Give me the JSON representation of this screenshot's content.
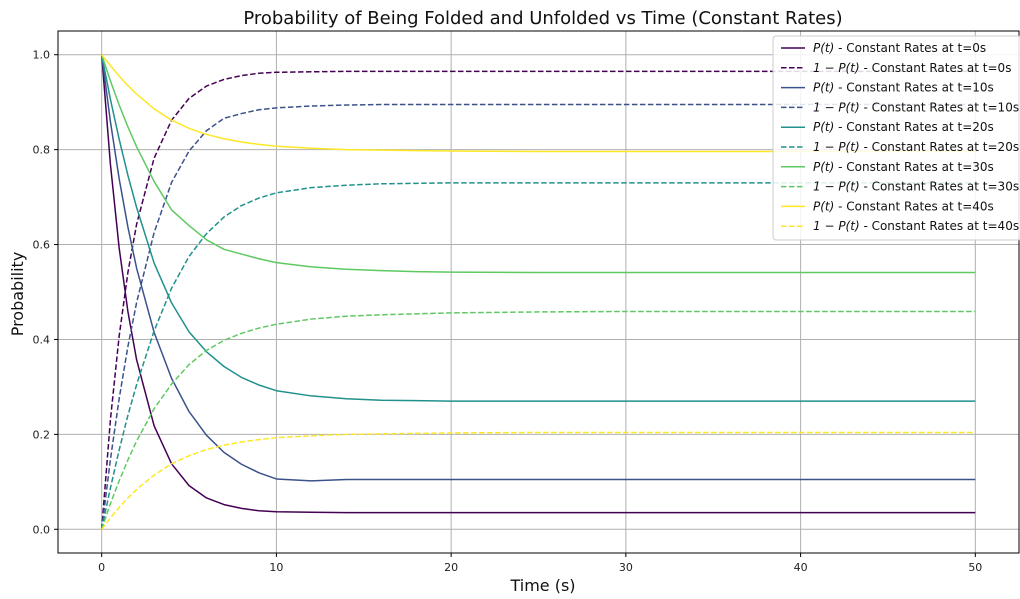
{
  "chart_data": {
    "type": "line",
    "title": "Probability of Being Folded and Unfolded vs Time (Constant Rates)",
    "xlabel": "Time (s)",
    "ylabel": "Probability",
    "xlim": [
      -2.5,
      52.5
    ],
    "ylim": [
      -0.05,
      1.05
    ],
    "xticks": [
      0,
      10,
      20,
      30,
      40,
      50
    ],
    "yticks": [
      0.0,
      0.2,
      0.4,
      0.6,
      0.8,
      1.0
    ],
    "xtick_labels": [
      "0",
      "10",
      "20",
      "30",
      "40",
      "50"
    ],
    "ytick_labels": [
      "0.0",
      "0.2",
      "0.4",
      "0.6",
      "0.8",
      "1.0"
    ],
    "grid": true,
    "legend_position": "top-right",
    "x": [
      0,
      0.5,
      1,
      1.5,
      2,
      3,
      4,
      5,
      6,
      7,
      8,
      9,
      10,
      12,
      14,
      16,
      18,
      20,
      25,
      30,
      35,
      40,
      45,
      50
    ],
    "series": [
      {
        "name": "P(t) - Constant Rates at t=0s",
        "legend_prefix": "P(t)",
        "legend_suffix": " - Constant Rates at t=0s",
        "color": "#440154",
        "dash": "solid",
        "values": [
          1.0,
          0.769,
          0.593,
          0.459,
          0.357,
          0.218,
          0.138,
          0.092,
          0.066,
          0.052,
          0.044,
          0.039,
          0.037,
          0.036,
          0.035,
          0.035,
          0.035,
          0.035,
          0.035,
          0.035,
          0.035,
          0.035,
          0.035,
          0.035
        ]
      },
      {
        "name": "1 - P(t) - Constant Rates at t=0s",
        "legend_prefix": "1 − P(t)",
        "legend_suffix": " - Constant Rates at t=0s",
        "color": "#440154",
        "dash": "dashed",
        "values": [
          0.0,
          0.231,
          0.407,
          0.541,
          0.643,
          0.782,
          0.862,
          0.908,
          0.934,
          0.948,
          0.956,
          0.961,
          0.963,
          0.964,
          0.965,
          0.965,
          0.965,
          0.965,
          0.965,
          0.965,
          0.965,
          0.965,
          0.965,
          0.965
        ]
      },
      {
        "name": "P(t) - Constant Rates at t=10s",
        "legend_prefix": "P(t)",
        "legend_suffix": " - Constant Rates at t=10s",
        "color": "#3b528b",
        "dash": "solid",
        "values": [
          1.0,
          0.859,
          0.739,
          0.637,
          0.55,
          0.415,
          0.318,
          0.248,
          0.198,
          0.162,
          0.137,
          0.119,
          0.106,
          0.102,
          0.105,
          0.105,
          0.105,
          0.105,
          0.105,
          0.105,
          0.105,
          0.105,
          0.105,
          0.105
        ]
      },
      {
        "name": "1 - P(t) - Constant Rates at t=10s",
        "legend_prefix": "1 − P(t)",
        "legend_suffix": " - Constant Rates at t=10s",
        "color": "#3b528b",
        "dash": "dashed",
        "values": [
          0.0,
          0.147,
          0.275,
          0.385,
          0.478,
          0.625,
          0.731,
          0.797,
          0.84,
          0.866,
          0.876,
          0.884,
          0.888,
          0.892,
          0.894,
          0.895,
          0.895,
          0.895,
          0.895,
          0.895,
          0.895,
          0.895,
          0.895,
          0.895
        ]
      },
      {
        "name": "P(t) - Constant Rates at t=20s",
        "legend_prefix": "P(t)",
        "legend_suffix": " - Constant Rates at t=20s",
        "color": "#21918c",
        "dash": "solid",
        "values": [
          1.0,
          0.906,
          0.822,
          0.746,
          0.678,
          0.561,
          0.477,
          0.416,
          0.374,
          0.343,
          0.32,
          0.304,
          0.292,
          0.281,
          0.275,
          0.272,
          0.271,
          0.27,
          0.27,
          0.27,
          0.27,
          0.27,
          0.27,
          0.27
        ]
      },
      {
        "name": "1 - P(t) - Constant Rates at t=20s",
        "legend_prefix": "1 − P(t)",
        "legend_suffix": " - Constant Rates at t=20s",
        "color": "#21918c",
        "dash": "dashed",
        "values": [
          0.0,
          0.087,
          0.167,
          0.24,
          0.305,
          0.418,
          0.508,
          0.575,
          0.623,
          0.658,
          0.682,
          0.698,
          0.709,
          0.72,
          0.725,
          0.728,
          0.729,
          0.73,
          0.73,
          0.73,
          0.73,
          0.73,
          0.73,
          0.73
        ]
      },
      {
        "name": "P(t) - Constant Rates at t=30s",
        "legend_prefix": "P(t)",
        "legend_suffix": " - Constant Rates at t=30s",
        "color": "#5ec962",
        "dash": "solid",
        "values": [
          1.0,
          0.945,
          0.894,
          0.848,
          0.806,
          0.733,
          0.673,
          0.64,
          0.61,
          0.59,
          0.58,
          0.57,
          0.562,
          0.553,
          0.548,
          0.545,
          0.543,
          0.542,
          0.541,
          0.541,
          0.541,
          0.541,
          0.541,
          0.541
        ]
      },
      {
        "name": "1 - P(t) - Constant Rates at t=30s",
        "legend_prefix": "1 − P(t)",
        "legend_suffix": " - Constant Rates at t=30s",
        "color": "#5ec962",
        "dash": "dashed",
        "values": [
          0.0,
          0.054,
          0.102,
          0.146,
          0.186,
          0.254,
          0.306,
          0.347,
          0.377,
          0.398,
          0.413,
          0.424,
          0.432,
          0.443,
          0.449,
          0.452,
          0.454,
          0.456,
          0.458,
          0.459,
          0.459,
          0.459,
          0.459,
          0.459
        ]
      },
      {
        "name": "P(t) - Constant Rates at t=40s",
        "legend_prefix": "P(t)",
        "legend_suffix": " - Constant Rates at t=40s",
        "color": "#fde725",
        "dash": "solid",
        "values": [
          1.0,
          0.977,
          0.955,
          0.935,
          0.917,
          0.886,
          0.862,
          0.845,
          0.832,
          0.823,
          0.816,
          0.811,
          0.807,
          0.803,
          0.8,
          0.799,
          0.798,
          0.797,
          0.796,
          0.796,
          0.796,
          0.796,
          0.796,
          0.796
        ]
      },
      {
        "name": "1 - P(t) - Constant Rates at t=40s",
        "legend_prefix": "1 − P(t)",
        "legend_suffix": " - Constant Rates at t=40s",
        "color": "#fde725",
        "dash": "dashed",
        "values": [
          0.0,
          0.024,
          0.046,
          0.066,
          0.084,
          0.114,
          0.138,
          0.155,
          0.168,
          0.177,
          0.184,
          0.189,
          0.193,
          0.197,
          0.2,
          0.201,
          0.202,
          0.203,
          0.204,
          0.204,
          0.204,
          0.204,
          0.204,
          0.204
        ]
      }
    ]
  }
}
